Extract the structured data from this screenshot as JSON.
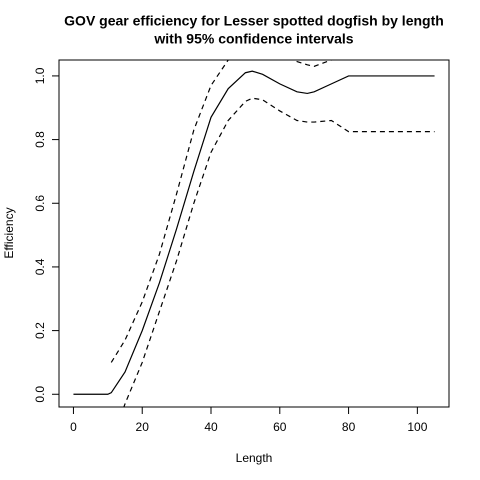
{
  "chart_data": {
    "type": "line",
    "title": [
      "GOV gear efficiency for Lesser spotted dogfish by length",
      "with 95% confidence intervals"
    ],
    "x_label": "Length",
    "y_label": "Efficiency",
    "x": [
      0,
      10,
      11,
      15,
      20,
      25,
      30,
      35,
      40,
      45,
      50,
      52,
      55,
      60,
      65,
      68,
      70,
      75,
      80,
      105
    ],
    "series": [
      {
        "color": "#000000",
        "linestyle": "solid",
        "values": [
          0,
          0,
          0.005,
          0.07,
          0.2,
          0.35,
          0.52,
          0.7,
          0.87,
          0.96,
          1.01,
          1.015,
          1.005,
          0.975,
          0.95,
          0.945,
          0.95,
          0.975,
          1.0,
          1.0
        ]
      },
      {
        "color": "#000000",
        "linestyle": "dashed",
        "values": [
          null,
          null,
          0.1,
          0.17,
          0.29,
          0.44,
          0.63,
          0.83,
          0.97,
          1.05,
          1.1,
          1.1,
          1.1,
          1.07,
          1.045,
          1.035,
          1.03,
          1.05,
          1.1,
          1.1
        ]
      },
      {
        "color": "#000000",
        "linestyle": "dashed",
        "values": [
          null,
          null,
          -0.15,
          -0.03,
          0.1,
          0.26,
          0.42,
          0.6,
          0.76,
          0.86,
          0.92,
          0.93,
          0.925,
          0.89,
          0.86,
          0.855,
          0.855,
          0.86,
          0.825,
          0.825
        ]
      }
    ],
    "xlim": [
      -4.2,
      109.2
    ],
    "ylim": [
      -0.04,
      1.05
    ],
    "xticks": [
      0,
      20,
      40,
      60,
      80,
      100
    ],
    "yticks": [
      {
        "value": 0,
        "label": "0.0"
      },
      {
        "value": 0.2,
        "label": "0.2"
      },
      {
        "value": 0.4,
        "label": "0.4"
      },
      {
        "value": 0.6,
        "label": "0.6"
      },
      {
        "value": 0.8,
        "label": "0.8"
      },
      {
        "value": 1,
        "label": "1.0"
      }
    ]
  }
}
